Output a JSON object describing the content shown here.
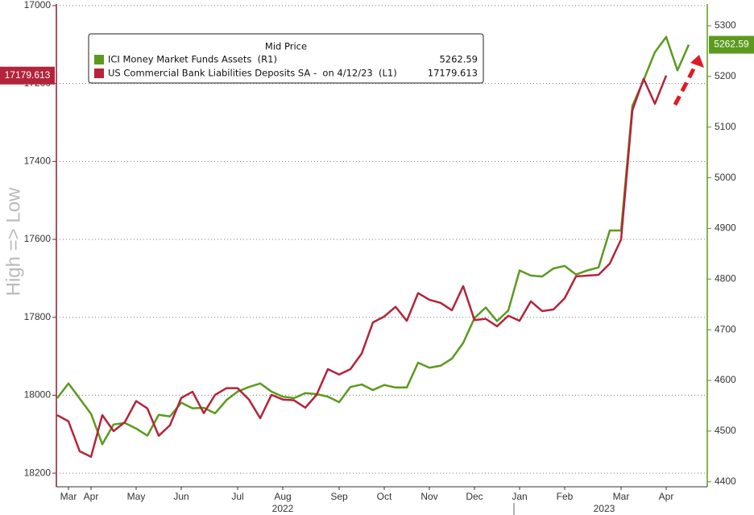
{
  "chart_data": {
    "type": "line",
    "ylabel": "High => Low",
    "legend_title": "Mid Price",
    "categories": [
      null,
      "Mar",
      null,
      "Apr",
      null,
      null,
      null,
      "May",
      null,
      null,
      null,
      "Jun",
      null,
      null,
      null,
      null,
      "Jul",
      null,
      null,
      null,
      "Aug",
      null,
      null,
      null,
      null,
      "Sep",
      null,
      null,
      null,
      "Oct",
      null,
      null,
      null,
      "Nov",
      null,
      null,
      null,
      "Dec",
      null,
      null,
      null,
      "Jan",
      null,
      null,
      null,
      "Feb",
      null,
      null,
      null,
      null,
      "Mar",
      null,
      null,
      null,
      "Apr",
      null,
      null
    ],
    "x_group_labels": [
      "2022",
      "2023"
    ],
    "ylim": [
      18235,
      16996
    ],
    "yticks": [
      17000,
      17200,
      17400,
      17600,
      17800,
      18000,
      18200
    ],
    "y2lim": [
      4390,
      5343
    ],
    "y2ticks": [
      4400,
      4500,
      4600,
      4700,
      4800,
      4900,
      5000,
      5100,
      5200,
      5300
    ],
    "grid": true,
    "series": [
      {
        "name": "ICI Money Market Funds Assets  (R1)",
        "color": "#5b9a1f",
        "axis": "y2",
        "values": [
          4565,
          4594,
          4564,
          4534,
          4474,
          4513,
          4516,
          4505,
          4491,
          4532,
          4529,
          4556,
          4545,
          4546,
          4535,
          4561,
          4578,
          4587,
          4594,
          4578,
          4568,
          4565,
          4575,
          4573,
          4568,
          4557,
          4587,
          4592,
          4581,
          4591,
          4586,
          4586,
          4635,
          4625,
          4629,
          4643,
          4674,
          4723,
          4744,
          4717,
          4738,
          4817,
          4807,
          4805,
          4821,
          4826,
          4809,
          4817,
          4823,
          4896,
          4896,
          5142,
          5193,
          5248,
          5278,
          5212,
          5262.59
        ]
      },
      {
        "name": "US Commercial Bank Liabilities Deposits SA -  on 4/12/23  (L1)",
        "color": "#b3243a",
        "axis": "y",
        "values": [
          18051,
          18067,
          18144,
          18158,
          18051,
          18092,
          18069,
          18015,
          18034,
          18104,
          18077,
          18007,
          17991,
          18046,
          17999,
          17982,
          17982,
          18011,
          18059,
          17999,
          18011,
          18013,
          18032,
          17999,
          17933,
          17947,
          17933,
          17893,
          17813,
          17798,
          17773,
          17809,
          17738,
          17755,
          17763,
          17782,
          17720,
          17807,
          17804,
          17823,
          17796,
          17809,
          17759,
          17784,
          17780,
          17751,
          17695,
          17693,
          17691,
          17662,
          17600,
          17269,
          17188,
          17252,
          17179.613,
          null,
          null
        ]
      }
    ]
  }
}
